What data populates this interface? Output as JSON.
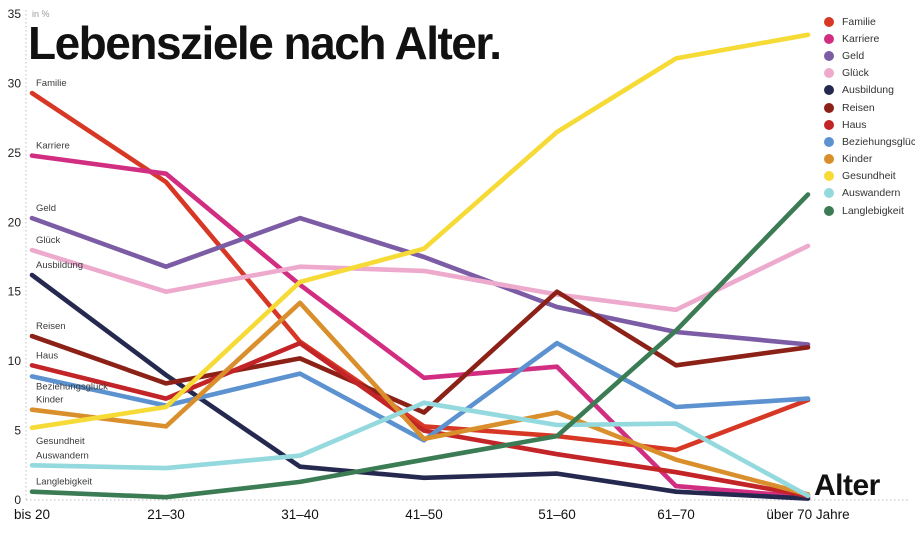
{
  "chart_data": {
    "type": "line",
    "title": "Lebensziele nach Alter.",
    "unit_label": "in %",
    "x_axis_title": "Alter",
    "categories": [
      "bis 20",
      "21–30",
      "31–40",
      "41–50",
      "51–60",
      "61–70",
      "über 70 Jahre"
    ],
    "y_ticks": [
      0,
      5,
      10,
      15,
      20,
      25,
      30,
      35
    ],
    "ylim": [
      0,
      35
    ],
    "grid": "off",
    "legend_position": "top-right",
    "axis_style": "dotted",
    "series": [
      {
        "name": "Familie",
        "color": "#d73825",
        "values": [
          29.3,
          22.9,
          11.4,
          5.3,
          4.6,
          3.6,
          7.2
        ]
      },
      {
        "name": "Karriere",
        "color": "#d12e82",
        "values": [
          24.8,
          23.5,
          15.5,
          8.8,
          9.6,
          1.0,
          0.2
        ]
      },
      {
        "name": "Geld",
        "color": "#7b5ca5",
        "values": [
          20.3,
          16.8,
          20.3,
          17.5,
          13.9,
          12.1,
          11.2
        ]
      },
      {
        "name": "Glück",
        "color": "#edaacd",
        "values": [
          18.0,
          15.0,
          16.8,
          16.5,
          14.8,
          13.7,
          18.3
        ]
      },
      {
        "name": "Ausbildung",
        "color": "#25294f",
        "values": [
          16.2,
          9.0,
          2.4,
          1.6,
          1.9,
          0.6,
          0.1
        ]
      },
      {
        "name": "Reisen",
        "color": "#8c2117",
        "values": [
          11.8,
          8.4,
          10.2,
          6.3,
          15.0,
          9.7,
          11.0
        ]
      },
      {
        "name": "Haus",
        "color": "#c32427",
        "values": [
          9.7,
          7.3,
          11.3,
          5.0,
          3.3,
          2.0,
          0.3
        ]
      },
      {
        "name": "Beziehungsglück",
        "color": "#5d92d1",
        "values": [
          8.9,
          6.8,
          9.1,
          4.3,
          11.3,
          6.7,
          7.3
        ]
      },
      {
        "name": "Kinder",
        "color": "#d98f2b",
        "values": [
          6.5,
          5.3,
          14.2,
          4.4,
          6.3,
          2.9,
          0.4
        ]
      },
      {
        "name": "Gesundheit",
        "color": "#f6da36",
        "values": [
          5.2,
          6.7,
          15.7,
          18.1,
          26.5,
          31.8,
          33.5
        ]
      },
      {
        "name": "Auswandern",
        "color": "#93d9de",
        "values": [
          2.5,
          2.3,
          3.2,
          7.0,
          5.4,
          5.5,
          0.3
        ]
      },
      {
        "name": "Langlebigkeit",
        "color": "#3b7c55",
        "values": [
          0.6,
          0.2,
          1.3,
          2.9,
          4.6,
          12.2,
          22.0
        ]
      }
    ]
  }
}
